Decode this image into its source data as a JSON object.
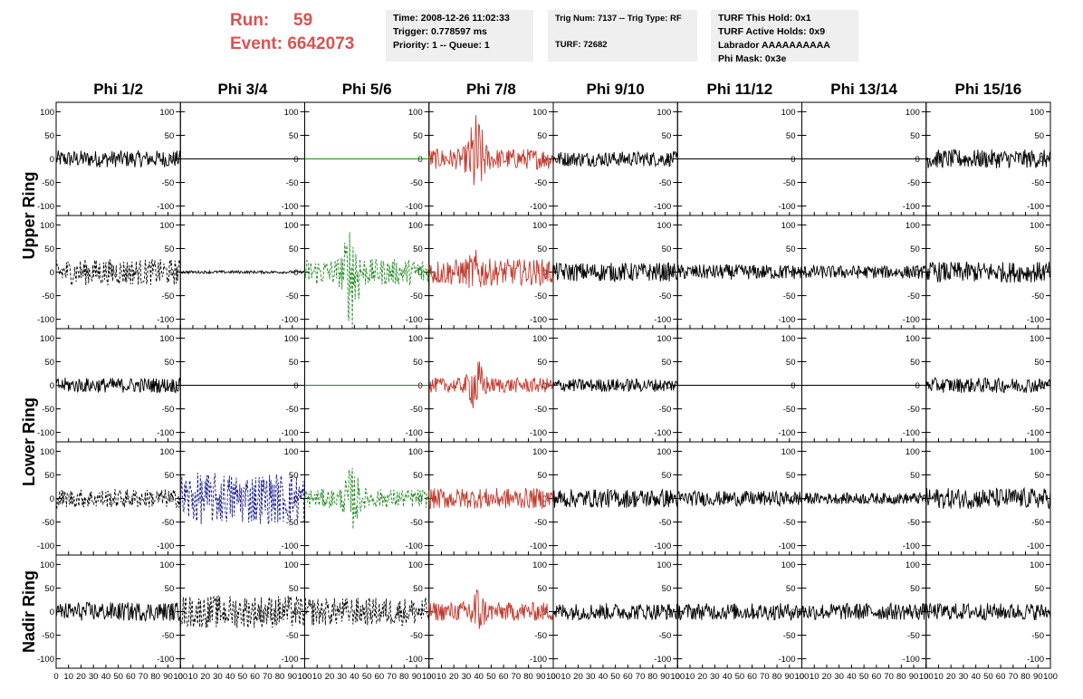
{
  "header": {
    "run_label": "Run:",
    "run_value": "59",
    "event_label": "Event:",
    "event_value": "6642073"
  },
  "info_time": {
    "time": "Time: 2008-12-26 11:02:33",
    "trigger": "Trigger: 0.778597 ms",
    "priority": "Priority: 1 -- Queue: 1"
  },
  "info_trig": {
    "trig": "Trig Num: 7137 -- Trig Type: RF",
    "turf": "TURF: 72682"
  },
  "info_turf": {
    "hold": "TURF This Hold: 0x1",
    "active": "TURF Active Holds: 0x9",
    "labrador": "Labrador AAAAAAAAAA",
    "phimask": "Phi Mask: 0x3e"
  },
  "phi_labels": [
    "Phi 1/2",
    "Phi 3/4",
    "Phi 5/6",
    "Phi 7/8",
    "Phi 9/10",
    "Phi 11/12",
    "Phi 13/14",
    "Phi 15/16"
  ],
  "ring_labels": [
    "Upper Ring",
    "Lower Ring",
    "Nadir Ring"
  ],
  "y_ticks": [
    "100",
    "50",
    "0",
    "-50",
    "-100"
  ],
  "x_ticks": [
    "0",
    "10",
    "20",
    "30",
    "40",
    "50",
    "60",
    "70",
    "80",
    "90",
    "100"
  ],
  "colors": {
    "black": "#000000",
    "red": "#c43a2e",
    "green": "#1e8a1e",
    "blue": "#1a1a8c"
  },
  "chart_data": {
    "type": "line",
    "xlim": [
      0,
      100
    ],
    "ylim": [
      -120,
      120
    ],
    "rows": 5,
    "cols": 8,
    "panels": [
      {
        "r": 0,
        "c": 0,
        "amp": 18,
        "burst": 0,
        "color": "black",
        "dash": false
      },
      {
        "r": 0,
        "c": 1,
        "amp": 0,
        "burst": 0,
        "color": "black",
        "dash": false
      },
      {
        "r": 0,
        "c": 2,
        "amp": 0,
        "burst": 0,
        "color": "green",
        "dash": false
      },
      {
        "r": 0,
        "c": 3,
        "amp": 22,
        "burst": 80,
        "color": "red",
        "dash": false
      },
      {
        "r": 0,
        "c": 4,
        "amp": 16,
        "burst": 0,
        "color": "black",
        "dash": false
      },
      {
        "r": 0,
        "c": 5,
        "amp": 0,
        "burst": 0,
        "color": "black",
        "dash": false
      },
      {
        "r": 0,
        "c": 6,
        "amp": 0,
        "burst": 0,
        "color": "black",
        "dash": false
      },
      {
        "r": 0,
        "c": 7,
        "amp": 20,
        "burst": 0,
        "color": "black",
        "dash": false
      },
      {
        "r": 1,
        "c": 0,
        "amp": 28,
        "burst": 0,
        "color": "black",
        "dash": true
      },
      {
        "r": 1,
        "c": 1,
        "amp": 3,
        "burst": 0,
        "color": "black",
        "dash": false
      },
      {
        "r": 1,
        "c": 2,
        "amp": 28,
        "burst": 95,
        "color": "green",
        "dash": true
      },
      {
        "r": 1,
        "c": 3,
        "amp": 28,
        "burst": 20,
        "color": "red",
        "dash": false
      },
      {
        "r": 1,
        "c": 4,
        "amp": 20,
        "burst": 0,
        "color": "black",
        "dash": false
      },
      {
        "r": 1,
        "c": 5,
        "amp": 16,
        "burst": 0,
        "color": "black",
        "dash": false
      },
      {
        "r": 1,
        "c": 6,
        "amp": 14,
        "burst": 0,
        "color": "black",
        "dash": false
      },
      {
        "r": 1,
        "c": 7,
        "amp": 22,
        "burst": 0,
        "color": "black",
        "dash": false
      },
      {
        "r": 2,
        "c": 0,
        "amp": 16,
        "burst": 0,
        "color": "black",
        "dash": false
      },
      {
        "r": 2,
        "c": 1,
        "amp": 0,
        "burst": 0,
        "color": "black",
        "dash": false
      },
      {
        "r": 2,
        "c": 2,
        "amp": 0,
        "burst": 0,
        "color": "green",
        "dash": false
      },
      {
        "r": 2,
        "c": 3,
        "amp": 16,
        "burst": 45,
        "color": "red",
        "dash": false
      },
      {
        "r": 2,
        "c": 4,
        "amp": 14,
        "burst": 0,
        "color": "black",
        "dash": false
      },
      {
        "r": 2,
        "c": 5,
        "amp": 0,
        "burst": 0,
        "color": "black",
        "dash": false
      },
      {
        "r": 2,
        "c": 6,
        "amp": 0,
        "burst": 0,
        "color": "black",
        "dash": false
      },
      {
        "r": 2,
        "c": 7,
        "amp": 16,
        "burst": 0,
        "color": "black",
        "dash": false
      },
      {
        "r": 3,
        "c": 0,
        "amp": 20,
        "burst": 0,
        "color": "black",
        "dash": true
      },
      {
        "r": 3,
        "c": 1,
        "amp": 55,
        "burst": 0,
        "color": "blue",
        "dash": true
      },
      {
        "r": 3,
        "c": 2,
        "amp": 20,
        "burst": 50,
        "color": "green",
        "dash": true
      },
      {
        "r": 3,
        "c": 3,
        "amp": 22,
        "burst": 0,
        "color": "red",
        "dash": false
      },
      {
        "r": 3,
        "c": 4,
        "amp": 20,
        "burst": 0,
        "color": "black",
        "dash": false
      },
      {
        "r": 3,
        "c": 5,
        "amp": 16,
        "burst": 0,
        "color": "black",
        "dash": false
      },
      {
        "r": 3,
        "c": 6,
        "amp": 12,
        "burst": 0,
        "color": "black",
        "dash": false
      },
      {
        "r": 3,
        "c": 7,
        "amp": 22,
        "burst": 0,
        "color": "black",
        "dash": false
      },
      {
        "r": 4,
        "c": 0,
        "amp": 20,
        "burst": 0,
        "color": "black",
        "dash": false
      },
      {
        "r": 4,
        "c": 1,
        "amp": 35,
        "burst": 0,
        "color": "black",
        "dash": true
      },
      {
        "r": 4,
        "c": 2,
        "amp": 30,
        "burst": 0,
        "color": "black",
        "dash": true
      },
      {
        "r": 4,
        "c": 3,
        "amp": 20,
        "burst": 40,
        "color": "red",
        "dash": false
      },
      {
        "r": 4,
        "c": 4,
        "amp": 18,
        "burst": 0,
        "color": "black",
        "dash": false
      },
      {
        "r": 4,
        "c": 5,
        "amp": 18,
        "burst": 0,
        "color": "black",
        "dash": false
      },
      {
        "r": 4,
        "c": 6,
        "amp": 18,
        "burst": 0,
        "color": "black",
        "dash": false
      },
      {
        "r": 4,
        "c": 7,
        "amp": 18,
        "burst": 0,
        "color": "black",
        "dash": false
      }
    ]
  }
}
